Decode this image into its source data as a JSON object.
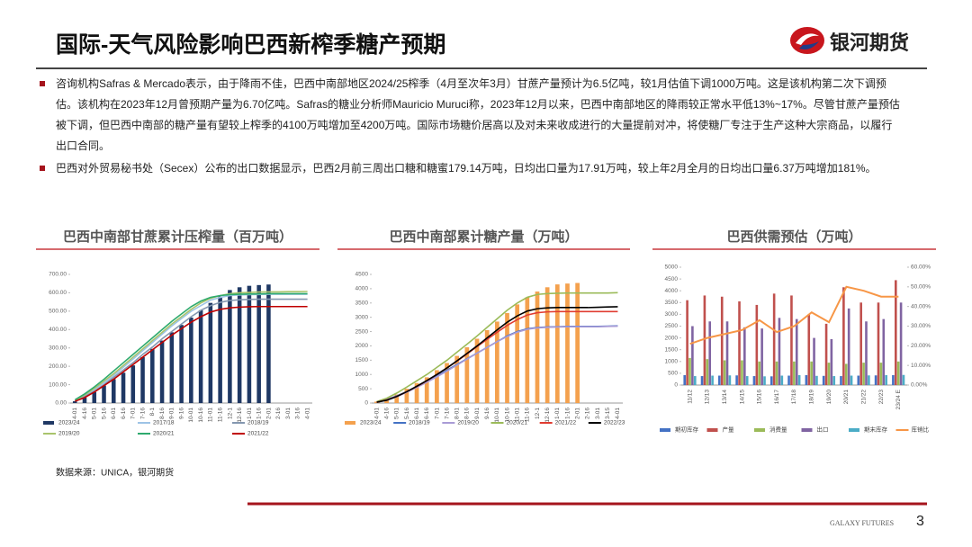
{
  "header": {
    "title": "国际-天气风险影响巴西新榨季糖产预期",
    "logo": "银河期货"
  },
  "bullets": [
    "咨询机构Safras & Mercado表示，由于降雨不佳，巴西中南部地区2024/25榨季（4月至次年3月）甘蔗产量预计为6.5亿吨，较1月估值下调1000万吨。这是该机构第二次下调预估。该机构在2023年12月曾预期产量为6.70亿吨。Safras的糖业分析师Mauricio Muruci称，2023年12月以来，巴西中南部地区的降雨较正常水平低13%~17%。尽管甘蔗产量预估被下调，但巴西中南部的糖产量有望较上榨季的4100万吨增加至4200万吨。国际市场糖价居高以及对未来收成进行的大量提前对冲，将使糖厂专注于生产这种大宗商品，以履行出口合同。",
    "巴西对外贸易秘书处（Secex）公布的出口数据显示，巴西2月前三周出口糖和糖蜜179.14万吨，日均出口量为17.91万吨，较上年2月全月的日均出口量6.37万吨增加181%。"
  ],
  "chart_data": [
    {
      "type": "combo",
      "title": "巴西中南部甘蔗累计压榨量（百万吨）",
      "categories": [
        "4-01",
        "4-16",
        "5-01",
        "5-16",
        "6-01",
        "6-16",
        "7-01",
        "7-16",
        "8-1",
        "8-16",
        "9-01",
        "9-16",
        "10-01",
        "10-16",
        "11-01",
        "11-16",
        "12-1",
        "12-16",
        "1-01",
        "1-16",
        "2-01",
        "2-16",
        "3-01",
        "3-16",
        "4-01"
      ],
      "ylim": [
        0,
        700
      ],
      "yticks": [
        {
          "value": 0,
          "label": "0.00"
        },
        {
          "value": 100,
          "label": "100.00"
        },
        {
          "value": 200,
          "label": "200.00"
        },
        {
          "value": 300,
          "label": "300.00"
        },
        {
          "value": 400,
          "label": "400.00"
        },
        {
          "value": 500,
          "label": "500.00"
        },
        {
          "value": 600,
          "label": "600.00"
        },
        {
          "value": 700,
          "label": "700.00"
        }
      ],
      "series": [
        {
          "name": "2023/24",
          "type": "bar",
          "color": "#1f3864",
          "values": [
            10,
            30,
            60,
            95,
            130,
            165,
            205,
            250,
            295,
            340,
            385,
            425,
            465,
            505,
            545,
            580,
            615,
            630,
            638,
            642,
            645,
            null,
            null,
            null,
            null
          ]
        },
        {
          "name": "2017/18",
          "type": "line",
          "color": "#9dc3e6",
          "values": [
            15,
            40,
            75,
            110,
            150,
            195,
            240,
            285,
            330,
            375,
            420,
            460,
            500,
            530,
            560,
            575,
            585,
            588,
            590,
            591,
            592,
            592,
            592,
            592,
            592
          ]
        },
        {
          "name": "2018/19",
          "type": "line",
          "color": "#8497b0",
          "values": [
            12,
            35,
            65,
            100,
            140,
            180,
            220,
            265,
            305,
            350,
            390,
            430,
            470,
            505,
            530,
            548,
            558,
            562,
            564,
            565,
            565,
            565,
            565,
            565,
            565
          ]
        },
        {
          "name": "2019/20",
          "type": "line",
          "color": "#a9c46c",
          "values": [
            15,
            45,
            80,
            120,
            160,
            205,
            250,
            295,
            340,
            385,
            430,
            470,
            510,
            545,
            570,
            585,
            595,
            600,
            602,
            604,
            605,
            605,
            606,
            606,
            607
          ]
        },
        {
          "name": "2020/21",
          "type": "line",
          "color": "#2eaa6e",
          "values": [
            18,
            50,
            88,
            130,
            175,
            220,
            265,
            310,
            355,
            400,
            445,
            485,
            525,
            555,
            575,
            585,
            590,
            592,
            593,
            594,
            595,
            595,
            595,
            595,
            595
          ]
        },
        {
          "name": "2021/22",
          "type": "line",
          "color": "#c00000",
          "values": [
            10,
            30,
            60,
            95,
            130,
            170,
            210,
            250,
            290,
            330,
            370,
            405,
            440,
            470,
            495,
            510,
            518,
            522,
            524,
            525,
            525,
            525,
            525,
            525,
            525
          ]
        }
      ]
    },
    {
      "type": "combo",
      "title": "巴西中南部累计糖产量（万吨）",
      "categories": [
        "4-01",
        "4-16",
        "5-01",
        "5-16",
        "6-01",
        "6-16",
        "7-01",
        "7-16",
        "8-01",
        "8-16",
        "9-01",
        "9-16",
        "10-01",
        "10-16",
        "11-01",
        "11-16",
        "12-1",
        "12-16",
        "1-01",
        "1-16",
        "2-01",
        "2-16",
        "3-01",
        "3-15",
        "4-01"
      ],
      "ylim": [
        0,
        4500
      ],
      "yticks": [
        0,
        500,
        1000,
        1500,
        2000,
        2500,
        3000,
        3500,
        4000,
        4500
      ],
      "series": [
        {
          "name": "2023/24",
          "type": "bar",
          "color": "#f4a14e",
          "values": [
            50,
            150,
            300,
            500,
            700,
            900,
            1150,
            1400,
            1650,
            1950,
            2250,
            2550,
            2850,
            3150,
            3450,
            3700,
            3900,
            4050,
            4150,
            4180,
            4200,
            null,
            null,
            null,
            null
          ]
        },
        {
          "name": "2018/19",
          "type": "line",
          "color": "#4472c4",
          "values": [
            40,
            120,
            250,
            400,
            580,
            760,
            950,
            1150,
            1350,
            1550,
            1750,
            1950,
            2150,
            2350,
            2500,
            2600,
            2640,
            2660,
            2670,
            2680,
            2680,
            2680,
            2680,
            2690,
            2700
          ]
        },
        {
          "name": "2019/20",
          "type": "line",
          "color": "#a99bd6",
          "values": [
            30,
            100,
            220,
            380,
            550,
            730,
            920,
            1120,
            1330,
            1540,
            1750,
            1950,
            2150,
            2330,
            2480,
            2580,
            2630,
            2650,
            2660,
            2670,
            2670,
            2670,
            2670,
            2680,
            2690
          ]
        },
        {
          "name": "2020/21",
          "type": "line",
          "color": "#9bbb59",
          "values": [
            50,
            170,
            350,
            560,
            780,
            1000,
            1250,
            1500,
            1780,
            2060,
            2350,
            2650,
            2950,
            3250,
            3500,
            3700,
            3800,
            3830,
            3840,
            3850,
            3850,
            3850,
            3850,
            3850,
            3860
          ]
        },
        {
          "name": "2021/22",
          "type": "line",
          "color": "#e03c31",
          "values": [
            30,
            110,
            230,
            400,
            580,
            780,
            1000,
            1230,
            1470,
            1720,
            1980,
            2230,
            2480,
            2720,
            2920,
            3080,
            3160,
            3190,
            3200,
            3200,
            3200,
            3200,
            3200,
            3200,
            3200
          ]
        },
        {
          "name": "2022/23",
          "type": "line",
          "color": "#000000",
          "values": [
            30,
            100,
            230,
            400,
            590,
            790,
            1000,
            1230,
            1480,
            1740,
            2000,
            2280,
            2560,
            2830,
            3050,
            3220,
            3300,
            3330,
            3340,
            3340,
            3340,
            3340,
            3350,
            3360,
            3370
          ]
        }
      ]
    },
    {
      "type": "combo",
      "title": "巴西供需预估（万吨）",
      "categories": [
        "11/12",
        "12/13",
        "13/14",
        "14/15",
        "15/16",
        "16/17",
        "17/18",
        "18/19",
        "19/20",
        "20/21",
        "21/22",
        "22/23",
        "23/24 E"
      ],
      "ylim": [
        0,
        5000
      ],
      "yticks": [
        0,
        500,
        1000,
        1500,
        2000,
        2500,
        3000,
        3500,
        4000,
        4500,
        5000
      ],
      "y2lim": [
        0,
        60
      ],
      "y2ticks": [
        {
          "value": 0,
          "label": "0.00%"
        },
        {
          "value": 10,
          "label": "10.00%"
        },
        {
          "value": 20,
          "label": "20.00%"
        },
        {
          "value": 30,
          "label": "30.00%"
        },
        {
          "value": 40,
          "label": "40.00%"
        },
        {
          "value": 50,
          "label": "50.00%"
        },
        {
          "value": 60,
          "label": "60.00%"
        }
      ],
      "series": [
        {
          "name": "期初库存",
          "type": "bar",
          "color": "#4472c4",
          "values": [
            420,
            380,
            400,
            410,
            380,
            370,
            400,
            420,
            390,
            380,
            400,
            410,
            420
          ]
        },
        {
          "name": "产量",
          "type": "bar",
          "color": "#c0504d",
          "values": [
            3600,
            3800,
            3750,
            3550,
            3400,
            3880,
            3800,
            3000,
            2600,
            4150,
            3500,
            3500,
            4450
          ]
        },
        {
          "name": "消费量",
          "type": "bar",
          "color": "#9bbb59",
          "values": [
            1150,
            1100,
            1050,
            1050,
            1000,
            1000,
            1000,
            1000,
            950,
            900,
            950,
            950,
            1000
          ]
        },
        {
          "name": "出口",
          "type": "bar",
          "color": "#8064a2",
          "values": [
            2500,
            2700,
            2700,
            2450,
            2400,
            2850,
            2800,
            2000,
            1950,
            3250,
            2700,
            2800,
            3500
          ]
        },
        {
          "name": "期末库存",
          "type": "bar",
          "color": "#4bacc6",
          "values": [
            380,
            400,
            410,
            380,
            370,
            400,
            420,
            390,
            380,
            400,
            410,
            420,
            430
          ]
        },
        {
          "name": "库销比",
          "type": "line",
          "axis": "y2",
          "color": "#f79646",
          "values": [
            21,
            24,
            26,
            28,
            33,
            27,
            30,
            37,
            32,
            50,
            48,
            45,
            45
          ]
        }
      ]
    }
  ],
  "source": "数据来源：UNICA，银河期货",
  "footer": {
    "brand": "GALAXY FUTURES",
    "page": "3"
  }
}
